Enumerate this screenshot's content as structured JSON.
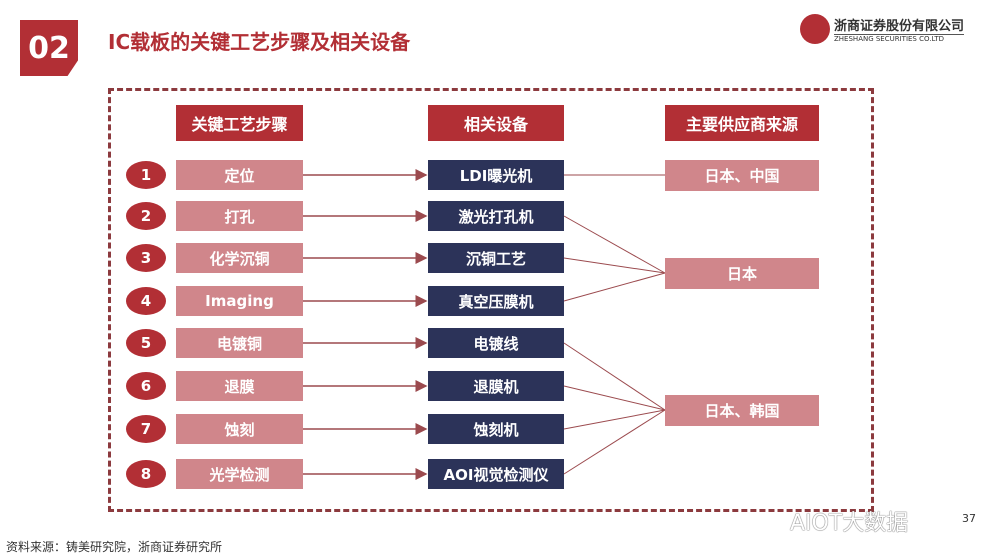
{
  "section_number": "02",
  "title": "IC载板的关键工艺步骤及相关设备",
  "logo": {
    "name_cn": "浙商证券股份有限公司",
    "name_en": "ZHESHANG SECURITIES CO.LTD"
  },
  "headers": {
    "steps": "关键工艺步骤",
    "equipment": "相关设备",
    "suppliers": "主要供应商来源"
  },
  "rows": [
    {
      "num": "1",
      "step": "定位",
      "equipment": "LDI曝光机",
      "supplier": 0
    },
    {
      "num": "2",
      "step": "打孔",
      "equipment": "激光打孔机",
      "supplier": 1
    },
    {
      "num": "3",
      "step": "化学沉铜",
      "equipment": "沉铜工艺",
      "supplier": 1
    },
    {
      "num": "4",
      "step": "Imaging",
      "equipment": "真空压膜机",
      "supplier": 1
    },
    {
      "num": "5",
      "step": "电镀铜",
      "equipment": "电镀线",
      "supplier": 2
    },
    {
      "num": "6",
      "step": "退膜",
      "equipment": "退膜机",
      "supplier": 2
    },
    {
      "num": "7",
      "step": "蚀刻",
      "equipment": "蚀刻机",
      "supplier": 2
    },
    {
      "num": "8",
      "step": "光学检测",
      "equipment": "AOI视觉检测仪",
      "supplier": 2
    }
  ],
  "suppliers": [
    "日本、中国",
    "日本",
    "日本、韩国"
  ],
  "source_note": "资料来源：铸美研究院，浙商证券研究所",
  "watermark": "AIOT大数据",
  "page_number": "37",
  "colors": {
    "accent_red": "#b22f35",
    "pink": "#d0868b",
    "navy": "#2c3359"
  }
}
